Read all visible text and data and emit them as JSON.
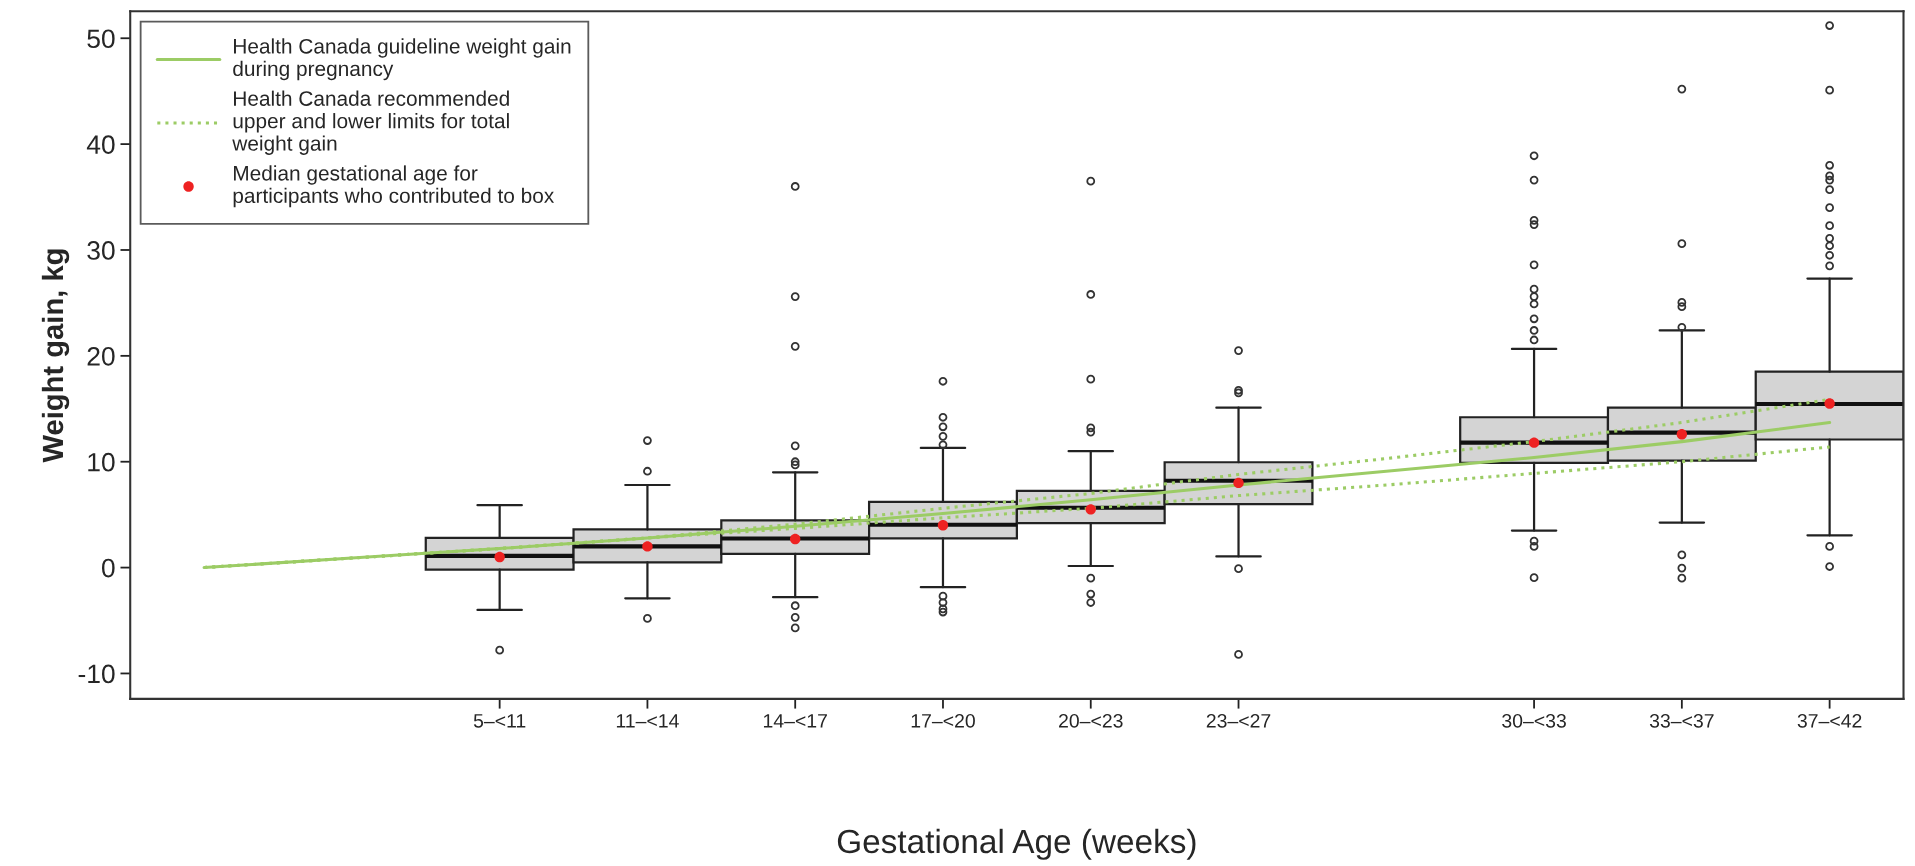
{
  "chart_data": {
    "type": "box",
    "xlabel": "Gestational Age (weeks)",
    "ylabel": "Weight gain, kg",
    "categories": [
      null,
      null,
      "5–<11",
      "11–<14",
      "14–<17",
      "17–<20",
      "20–<23",
      "23–<27",
      null,
      "30–<33",
      "33–<37",
      "37–<42"
    ],
    "boxes": [
      null,
      null,
      {
        "low": -4.0,
        "q1": -0.2,
        "median": 1.1,
        "q3": 2.8,
        "high": 5.9,
        "outliers": [
          -7.8
        ]
      },
      {
        "low": -2.9,
        "q1": 0.5,
        "median": 2.0,
        "q3": 3.6,
        "high": 7.8,
        "outliers": [
          12.0,
          9.1,
          -4.8
        ]
      },
      {
        "low": -2.8,
        "q1": 1.3,
        "median": 2.75,
        "q3": 4.45,
        "high": 9.0,
        "outliers": [
          36.0,
          25.6,
          20.9,
          11.5,
          10.0,
          9.7,
          -3.6,
          -4.7,
          -5.7
        ]
      },
      {
        "low": -1.85,
        "q1": 2.75,
        "median": 4.05,
        "q3": 6.2,
        "high": 11.3,
        "outliers": [
          17.6,
          14.2,
          13.3,
          12.4,
          11.6,
          -2.7,
          -3.3,
          -3.9,
          -4.2
        ]
      },
      {
        "low": 0.15,
        "q1": 4.2,
        "median": 5.65,
        "q3": 7.25,
        "high": 11.0,
        "outliers": [
          36.5,
          25.8,
          17.8,
          13.2,
          12.8,
          -1.0,
          -2.5,
          -3.3
        ]
      },
      {
        "low": 1.05,
        "q1": 6.0,
        "median": 8.2,
        "q3": 9.95,
        "high": 15.1,
        "outliers": [
          20.5,
          16.75,
          16.5,
          -0.1,
          -8.2
        ]
      },
      null,
      {
        "low": 3.5,
        "q1": 9.9,
        "median": 11.8,
        "q3": 14.2,
        "high": 20.65,
        "outliers": [
          38.9,
          36.6,
          32.8,
          32.4,
          28.6,
          26.3,
          25.6,
          24.9,
          23.5,
          22.4,
          21.5,
          2.5,
          2.0,
          -0.95
        ]
      },
      {
        "low": 4.25,
        "q1": 10.1,
        "median": 12.75,
        "q3": 15.1,
        "high": 22.4,
        "outliers": [
          45.2,
          30.6,
          25.05,
          24.65,
          22.7,
          1.2,
          -0.05,
          -1.0
        ]
      },
      {
        "low": 3.05,
        "q1": 12.1,
        "median": 15.45,
        "q3": 18.5,
        "high": 27.3,
        "outliers": [
          51.2,
          45.1,
          38.0,
          37.0,
          36.6,
          35.7,
          34.0,
          32.3,
          31.1,
          30.4,
          29.5,
          28.5,
          2.0,
          0.1
        ]
      }
    ],
    "series": [
      {
        "type": "line",
        "name": "Health Canada guideline weight gain\nduring pregnancy",
        "color": "#9ccc65",
        "line_style": "solid",
        "values": [
          0,
          0.9,
          1.8,
          2.8,
          3.9,
          5.1,
          6.4,
          7.8,
          9.1,
          10.4,
          11.9,
          13.7
        ]
      },
      {
        "type": "line",
        "name": "Health Canada recommended\nupper and lower limits for total\nweight gain",
        "color": "#9ccc65",
        "line_style": "dotted",
        "values": [
          0,
          0.9,
          1.8,
          2.8,
          4.1,
          5.6,
          7.0,
          8.8,
          10.3,
          11.9,
          13.7,
          15.9
        ]
      },
      {
        "type": "line",
        "color": "#9ccc65",
        "line_style": "dotted",
        "values": [
          0,
          0.9,
          1.8,
          2.8,
          3.7,
          4.7,
          5.6,
          6.8,
          7.8,
          8.9,
          10.0,
          11.4
        ]
      },
      {
        "type": "scatter",
        "name": "Median gestational age for\nparticipants who contributed to box",
        "color": "#ee2222",
        "marker": "circle",
        "values": [
          null,
          null,
          1.0,
          2.0,
          2.7,
          4.0,
          5.5,
          8.0,
          null,
          11.8,
          12.6,
          15.5
        ]
      }
    ],
    "ylim": [
      -12.4,
      52.55
    ],
    "yticks": [
      -10,
      0,
      10,
      20,
      30,
      40,
      50
    ],
    "legend": "top left",
    "grid": false
  }
}
